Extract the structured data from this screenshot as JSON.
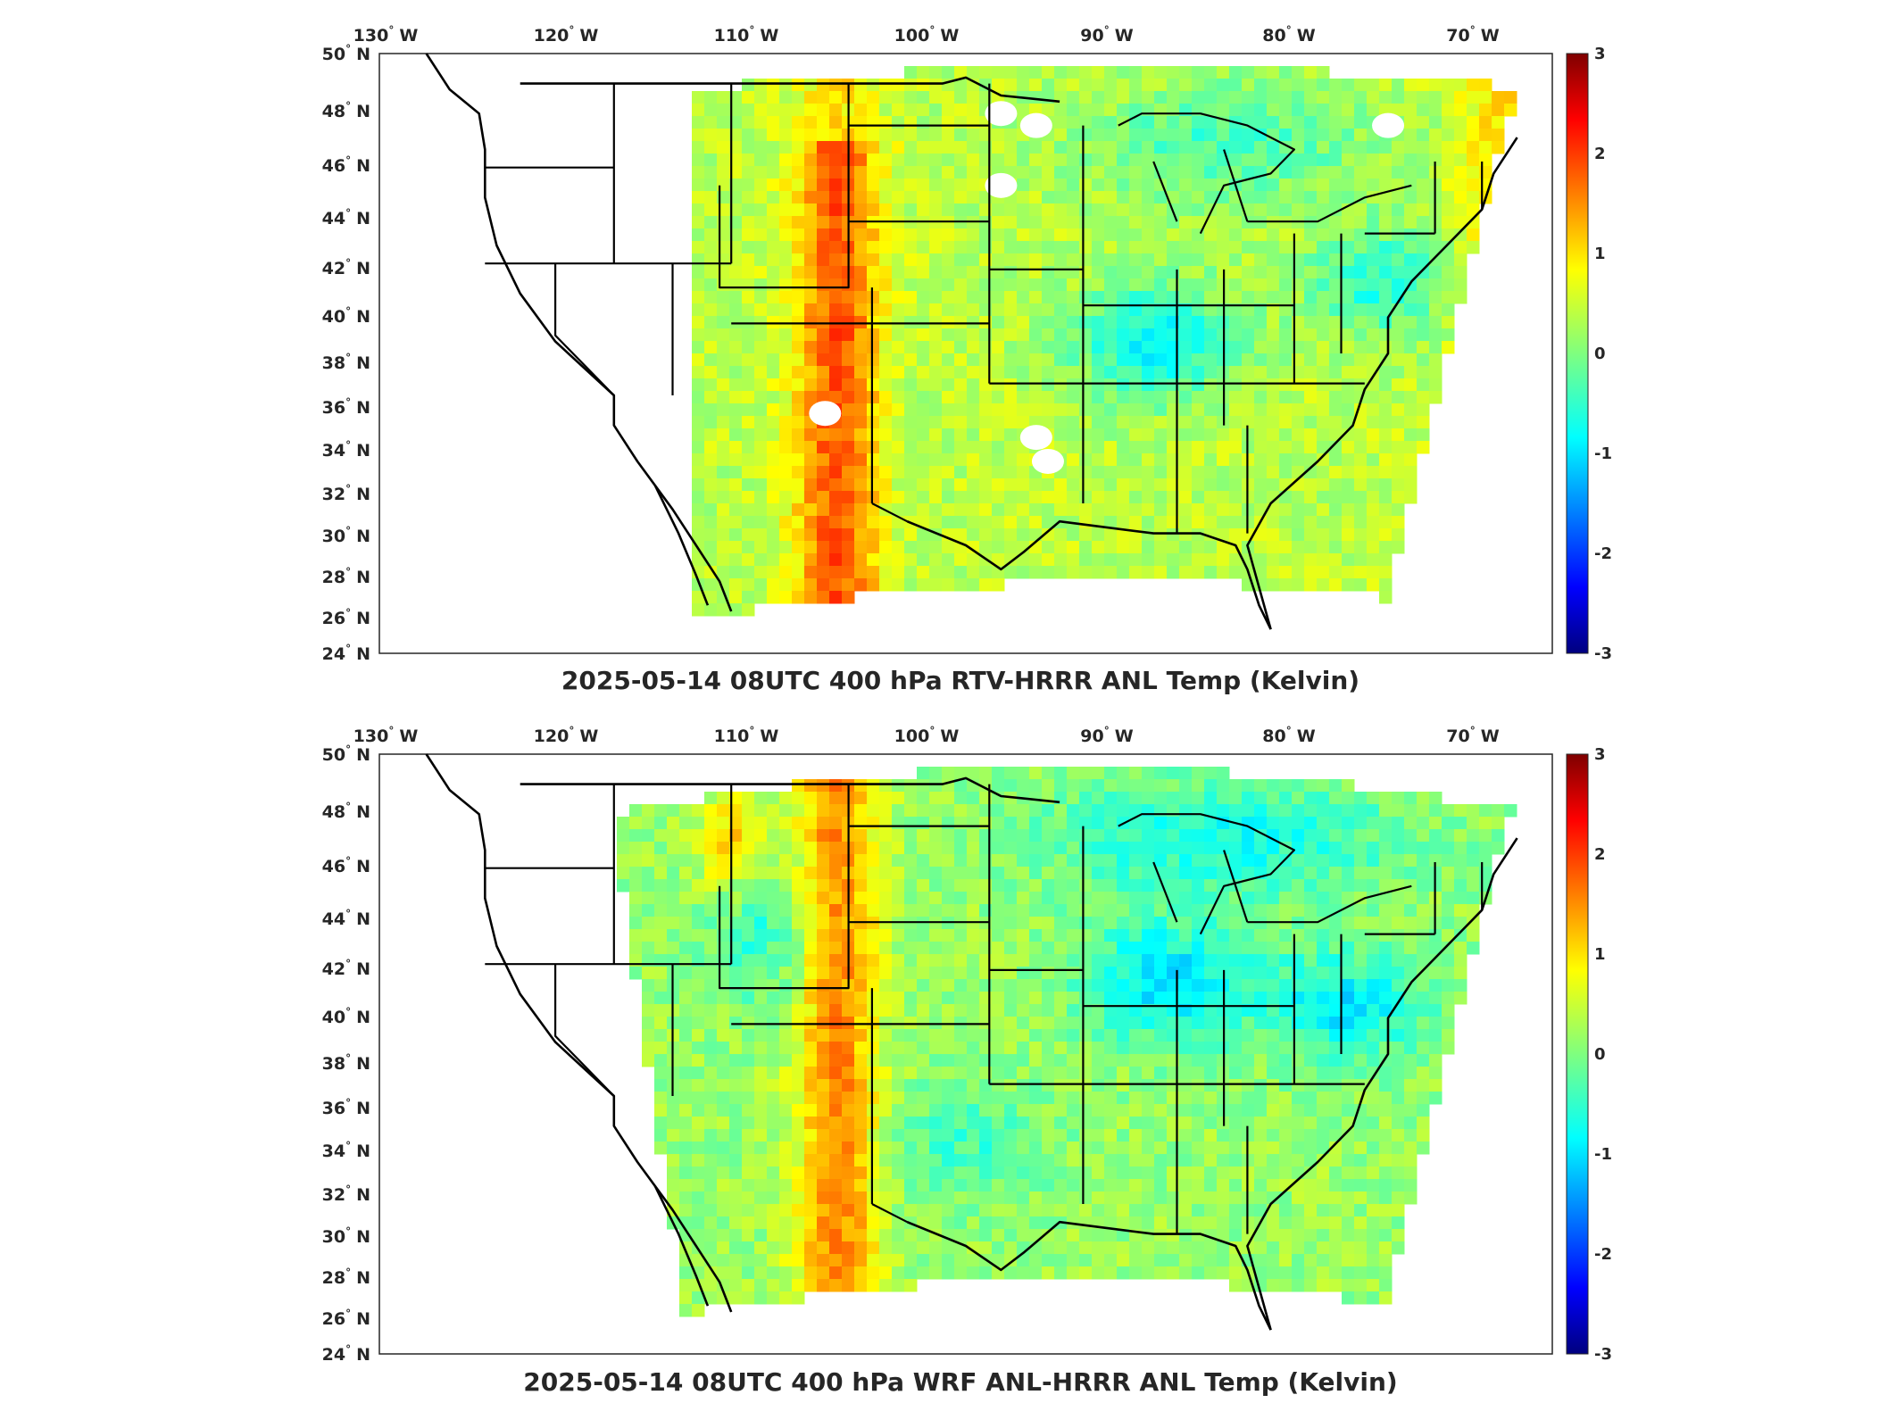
{
  "panels": [
    {
      "title": "2025-05-14 08UTC 400 hPa RTV-HRRR ANL Temp (Kelvin)",
      "field": "rtv"
    },
    {
      "title": "2025-05-14 08UTC 400 hPa WRF ANL-HRRR ANL Temp (Kelvin)",
      "field": "wrf"
    }
  ],
  "lon_ticks": [
    {
      "value": -130,
      "num": "130",
      "hemi": "W"
    },
    {
      "value": -120,
      "num": "120",
      "hemi": "W"
    },
    {
      "value": -110,
      "num": "110",
      "hemi": "W"
    },
    {
      "value": -100,
      "num": "100",
      "hemi": "W"
    },
    {
      "value": -90,
      "num": "90",
      "hemi": "W"
    },
    {
      "value": -80,
      "num": "80",
      "hemi": "W"
    },
    {
      "value": -70,
      "num": "70",
      "hemi": "W"
    }
  ],
  "lat_ticks": [
    {
      "value": 50,
      "num": "50",
      "hemi": "N"
    },
    {
      "value": 48,
      "num": "48",
      "hemi": "N"
    },
    {
      "value": 46,
      "num": "46",
      "hemi": "N"
    },
    {
      "value": 44,
      "num": "44",
      "hemi": "N"
    },
    {
      "value": 42,
      "num": "42",
      "hemi": "N"
    },
    {
      "value": 40,
      "num": "40",
      "hemi": "N"
    },
    {
      "value": 38,
      "num": "38",
      "hemi": "N"
    },
    {
      "value": 36,
      "num": "36",
      "hemi": "N"
    },
    {
      "value": 34,
      "num": "34",
      "hemi": "N"
    },
    {
      "value": 32,
      "num": "32",
      "hemi": "N"
    },
    {
      "value": 30,
      "num": "30",
      "hemi": "N"
    },
    {
      "value": 28,
      "num": "28",
      "hemi": "N"
    },
    {
      "value": 26,
      "num": "26",
      "hemi": "N"
    },
    {
      "value": 24,
      "num": "24",
      "hemi": "N"
    }
  ],
  "colorbar": {
    "ticks": [
      "3",
      "2",
      "1",
      "0",
      "-1",
      "-2",
      "-3"
    ],
    "colormap": "jet",
    "colors": [
      "#00007f",
      "#0000ff",
      "#007fff",
      "#00ffff",
      "#7fff7f",
      "#ffff00",
      "#ff7f00",
      "#ff0000",
      "#7f0000"
    ],
    "range": [
      -3,
      3
    ]
  },
  "map_extent": {
    "lon": [
      -132,
      -66
    ],
    "lat": [
      24,
      50
    ]
  }
}
